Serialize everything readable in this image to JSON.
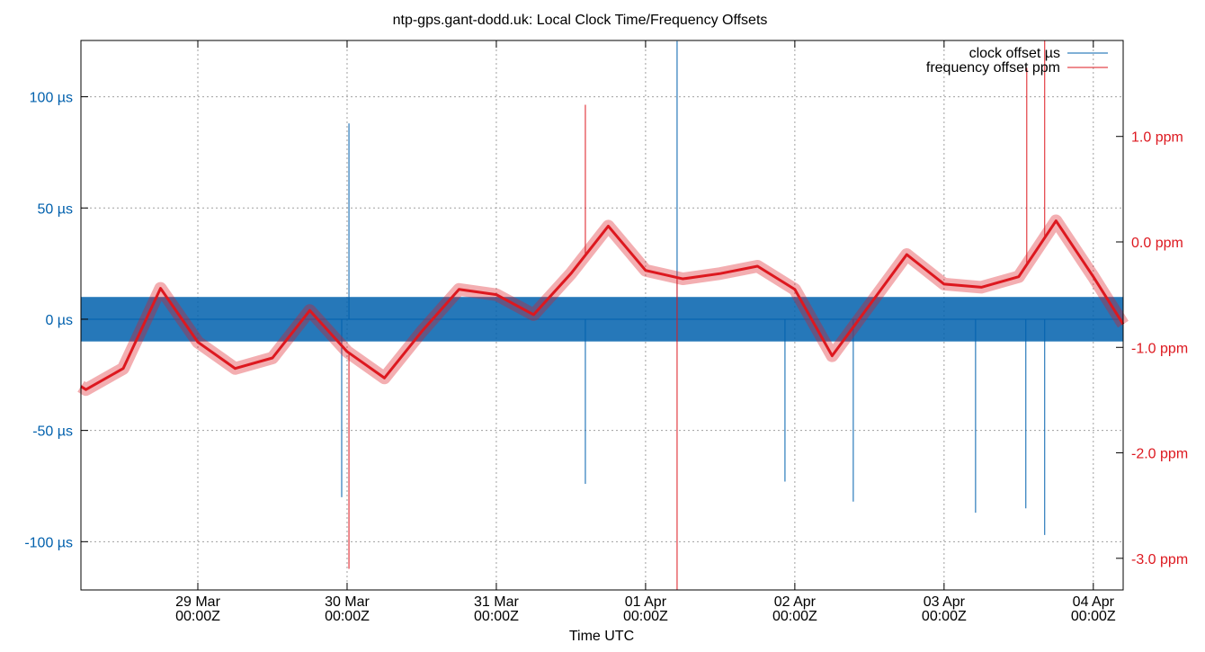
{
  "chart_data": {
    "type": "line",
    "title": "ntp-gps.gant-dodd.uk: Local Clock Time/Frequency Offsets",
    "xlabel": "Time UTC",
    "xlim": [
      "03-28 05:12",
      "04-04 04:48"
    ],
    "x_ticks": [
      {
        "date": "03-29 00:00",
        "line1": "29 Mar",
        "line2": "00:00Z"
      },
      {
        "date": "03-30 00:00",
        "line1": "30 Mar",
        "line2": "00:00Z"
      },
      {
        "date": "03-31 00:00",
        "line1": "31 Mar",
        "line2": "00:00Z"
      },
      {
        "date": "04-01 00:00",
        "line1": "01 Apr",
        "line2": "00:00Z"
      },
      {
        "date": "04-02 00:00",
        "line1": "02 Apr",
        "line2": "00:00Z"
      },
      {
        "date": "04-03 00:00",
        "line1": "03 Apr",
        "line2": "00:00Z"
      },
      {
        "date": "04-04 00:00",
        "line1": "04 Apr",
        "line2": "00:00Z"
      }
    ],
    "y_left": {
      "unit": "µs",
      "ylim": [
        -121.7,
        125.3
      ],
      "ticks": [
        {
          "v": 100,
          "label": "100 µs"
        },
        {
          "v": 50,
          "label": "50 µs"
        },
        {
          "v": 0,
          "label": "0 µs"
        },
        {
          "v": -50,
          "label": "-50 µs"
        },
        {
          "v": -100,
          "label": "-100 µs"
        }
      ]
    },
    "y_right": {
      "unit": "ppm",
      "ylim": [
        -3.3,
        1.91
      ],
      "ticks": [
        {
          "v": 1,
          "label": "1.0 ppm"
        },
        {
          "v": 0,
          "label": "0.0 ppm"
        },
        {
          "v": -1,
          "label": "-1.0 ppm"
        },
        {
          "v": -2,
          "label": "-2.0 ppm"
        },
        {
          "v": -3,
          "label": "-3.0 ppm"
        }
      ]
    },
    "grid": true,
    "legend_position": "top-right",
    "series": [
      {
        "name": "clock offset µs",
        "color": "#0060ad",
        "axis": "left",
        "typical_band": [
          -10,
          10
        ],
        "points": [
          [
            "03-28 05:12",
            0
          ],
          [
            "04-04 04:48",
            0
          ]
        ],
        "spikes": [
          [
            "03-30 00:18",
            88
          ],
          [
            "03-29 23:08",
            -80
          ],
          [
            "03-31 14:19",
            -74
          ],
          [
            "04-01 05:04",
            125
          ],
          [
            "04-01 22:25",
            -73
          ],
          [
            "04-02 09:24",
            -82
          ],
          [
            "04-03 05:04",
            -87
          ],
          [
            "04-03 13:09",
            -85
          ],
          [
            "04-03 16:11",
            -97
          ]
        ]
      },
      {
        "name": "frequency offset ppm",
        "color": "#dd181f",
        "axis": "right",
        "points": [
          [
            "03-28 05:12",
            -1.37
          ],
          [
            "03-28 06:00",
            -1.4
          ],
          [
            "03-28 12:00",
            -1.2
          ],
          [
            "03-28 18:00",
            -0.44
          ],
          [
            "03-29 00:00",
            -0.95
          ],
          [
            "03-29 06:00",
            -1.2
          ],
          [
            "03-29 12:00",
            -1.1
          ],
          [
            "03-29 18:00",
            -0.65
          ],
          [
            "03-30 00:00",
            -1.04
          ],
          [
            "03-30 06:00",
            -1.29
          ],
          [
            "03-30 12:00",
            -0.85
          ],
          [
            "03-30 18:00",
            -0.45
          ],
          [
            "03-31 00:00",
            -0.5
          ],
          [
            "03-31 06:00",
            -0.69
          ],
          [
            "03-31 12:00",
            -0.3
          ],
          [
            "03-31 18:00",
            0.15
          ],
          [
            "04-01 00:00",
            -0.27
          ],
          [
            "04-01 06:00",
            -0.35
          ],
          [
            "04-01 12:00",
            -0.3
          ],
          [
            "04-01 18:00",
            -0.23
          ],
          [
            "04-02 00:00",
            -0.45
          ],
          [
            "04-02 06:00",
            -1.08
          ],
          [
            "04-02 12:00",
            -0.6
          ],
          [
            "04-02 18:00",
            -0.12
          ],
          [
            "04-03 00:00",
            -0.4
          ],
          [
            "04-03 06:00",
            -0.43
          ],
          [
            "04-03 12:00",
            -0.33
          ],
          [
            "04-03 18:00",
            0.2
          ],
          [
            "04-04 00:00",
            -0.33
          ],
          [
            "04-04 04:48",
            -0.78
          ]
        ],
        "spikes": [
          [
            "04-01 05:04",
            -3.3
          ],
          [
            "03-30 00:18",
            -3.1
          ],
          [
            "03-31 14:19",
            1.3
          ],
          [
            "04-03 13:18",
            1.65
          ],
          [
            "04-03 16:11",
            1.91
          ]
        ]
      }
    ]
  }
}
